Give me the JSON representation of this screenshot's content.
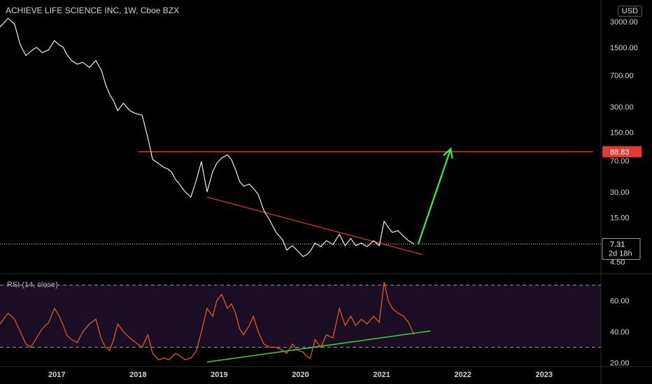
{
  "header": {
    "title": "ACHIEVE LIFE SCIENCE INC, 1W, Cboe BZX",
    "currency": "USD"
  },
  "rsi_panel": {
    "label": "RSI (14, close)"
  },
  "colors": {
    "background": "#000000",
    "price_line": "#ffffff",
    "rsi_line": "#e8621a",
    "resistance": "#e53935",
    "support": "#e53935",
    "rsi_trend": "#3fcf3f",
    "arrow": "#3fef3f",
    "grid_text": "#d1d4dc",
    "rsi_band": "#1a0d24"
  },
  "chart_data": [
    {
      "type": "line",
      "title": "ACHIEVE LIFE SCIENCE INC, 1W, Cboe BZX",
      "y_scale": "log",
      "y_ticks": [
        "3000.00",
        "1500.00",
        "700.00",
        "300.00",
        "150.00",
        "70.00",
        "30.00",
        "15.00",
        "4.50"
      ],
      "y_tick_values": [
        3000,
        1500,
        700,
        300,
        150,
        70,
        30,
        15,
        4.5
      ],
      "ylim": [
        3.4,
        5400
      ],
      "x_ticks": [
        "2017",
        "2018",
        "2019",
        "2020",
        "2021",
        "2022",
        "2023"
      ],
      "x_tick_values": [
        2017,
        2018,
        2019,
        2020,
        2021,
        2022,
        2023
      ],
      "xlim": [
        2016.3,
        2023.7
      ],
      "series": [
        {
          "x": [
            2016.3,
            2016.4,
            2016.48,
            2016.55,
            2016.62,
            2016.68,
            2016.75,
            2016.82,
            2016.9,
            2016.97,
            2017.03,
            2017.08,
            2017.12,
            2017.18,
            2017.25,
            2017.32,
            2017.4,
            2017.48,
            2017.55,
            2017.6,
            2017.65,
            2017.7,
            2017.75,
            2017.82,
            2017.9,
            2017.97,
            2018.05,
            2018.12,
            2018.18,
            2018.25,
            2018.32,
            2018.38,
            2018.42,
            2018.46,
            2018.5,
            2018.58,
            2018.65,
            2018.72,
            2018.78,
            2018.85,
            2018.92,
            2018.97,
            2019.03,
            2019.1,
            2019.15,
            2019.2,
            2019.25,
            2019.3,
            2019.37,
            2019.42,
            2019.48,
            2019.55,
            2019.62,
            2019.7,
            2019.78,
            2019.83,
            2019.9,
            2019.97,
            2020.03,
            2020.08,
            2020.12,
            2020.18,
            2020.25,
            2020.32,
            2020.4,
            2020.48,
            2020.55,
            2020.62,
            2020.68,
            2020.75,
            2020.82,
            2020.9,
            2020.97,
            2021.03,
            2021.08,
            2021.13,
            2021.2,
            2021.27,
            2021.33,
            2021.4
          ],
          "values": [
            2600,
            3300,
            2800,
            1600,
            1200,
            1350,
            1500,
            1300,
            1400,
            1800,
            1600,
            1500,
            1250,
            1050,
            950,
            1000,
            870,
            1050,
            800,
            550,
            420,
            350,
            270,
            330,
            270,
            250,
            240,
            130,
            72,
            65,
            58,
            55,
            50,
            42,
            38,
            30,
            26,
            42,
            68,
            30,
            52,
            65,
            75,
            82,
            72,
            55,
            40,
            35,
            37,
            33,
            28,
            18,
            14,
            10,
            8.2,
            6.2,
            7.0,
            6.0,
            5.2,
            5.5,
            6.0,
            7.5,
            6.8,
            8.0,
            7.2,
            9.5,
            7.0,
            8.5,
            7.0,
            7.5,
            6.8,
            8.0,
            7.0,
            13.5,
            11.5,
            10.0,
            10.5,
            9.0,
            8.0,
            7.31
          ]
        }
      ],
      "annotations": {
        "last_price_label": "7.31",
        "countdown": "2d 18h",
        "resistance_label": "88.83",
        "resistance_value": 88.83,
        "resistance_x": [
          2018.0,
          2023.6
        ],
        "support_line": {
          "x": [
            2018.85,
            2021.5
          ],
          "values": [
            26,
            5.5
          ]
        },
        "arrow": {
          "x": [
            2021.45,
            2021.85
          ],
          "values": [
            7.31,
            96
          ]
        },
        "last_price_line": true
      }
    },
    {
      "type": "line",
      "title": "RSI (14, close)",
      "y_ticks": [
        "60.00",
        "40.00",
        "20.00"
      ],
      "y_tick_values": [
        60,
        40,
        20
      ],
      "ylim": [
        18.5,
        76
      ],
      "bands": [
        30,
        70
      ],
      "xlim": [
        2016.3,
        2023.7
      ],
      "series": [
        {
          "x": [
            2016.3,
            2016.4,
            2016.48,
            2016.55,
            2016.62,
            2016.68,
            2016.75,
            2016.82,
            2016.9,
            2016.97,
            2017.03,
            2017.08,
            2017.12,
            2017.18,
            2017.25,
            2017.32,
            2017.4,
            2017.48,
            2017.55,
            2017.6,
            2017.65,
            2017.7,
            2017.75,
            2017.82,
            2017.9,
            2017.97,
            2018.05,
            2018.12,
            2018.18,
            2018.25,
            2018.32,
            2018.38,
            2018.42,
            2018.46,
            2018.5,
            2018.58,
            2018.65,
            2018.72,
            2018.78,
            2018.85,
            2018.92,
            2018.97,
            2019.03,
            2019.1,
            2019.15,
            2019.2,
            2019.25,
            2019.3,
            2019.37,
            2019.42,
            2019.48,
            2019.55,
            2019.62,
            2019.7,
            2019.78,
            2019.83,
            2019.9,
            2019.97,
            2020.03,
            2020.08,
            2020.12,
            2020.18,
            2020.25,
            2020.32,
            2020.4,
            2020.48,
            2020.55,
            2020.62,
            2020.68,
            2020.75,
            2020.82,
            2020.9,
            2020.97,
            2021.03,
            2021.08,
            2021.13,
            2021.2,
            2021.27,
            2021.33,
            2021.4
          ],
          "values": [
            45,
            52,
            48,
            40,
            32,
            30,
            36,
            42,
            46,
            55,
            50,
            44,
            38,
            35,
            33,
            40,
            45,
            48,
            35,
            30,
            28,
            35,
            45,
            40,
            36,
            33,
            30,
            38,
            26,
            22,
            23,
            22,
            24,
            26,
            25,
            22,
            23,
            28,
            40,
            55,
            50,
            60,
            64,
            55,
            58,
            52,
            42,
            38,
            44,
            50,
            40,
            32,
            30,
            30,
            28,
            26,
            32,
            28,
            27,
            24,
            23,
            35,
            30,
            38,
            36,
            55,
            44,
            50,
            44,
            48,
            45,
            50,
            46,
            72,
            60,
            55,
            52,
            50,
            46,
            38
          ]
        }
      ],
      "annotations": {
        "trend_line": {
          "x": [
            2018.85,
            2021.6
          ],
          "values": [
            20.5,
            40.5
          ]
        }
      }
    }
  ]
}
